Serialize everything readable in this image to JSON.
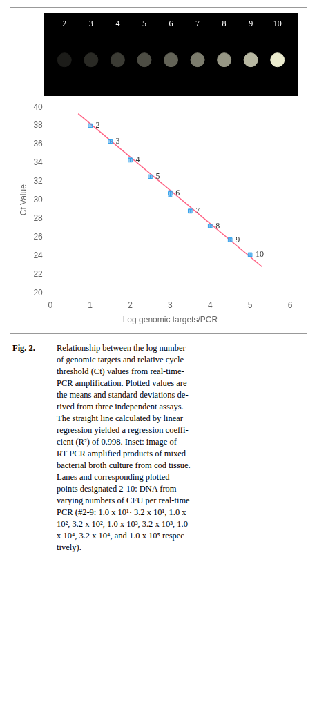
{
  "chart_data": [
    {
      "type": "gel",
      "categories": [
        "2",
        "3",
        "4",
        "5",
        "6",
        "7",
        "8",
        "9",
        "10"
      ],
      "values": [
        0.12,
        0.18,
        0.25,
        0.33,
        0.42,
        0.53,
        0.64,
        0.78,
        1.0
      ]
    },
    {
      "type": "scatter",
      "xlabel": "Log genomic targets/PCR",
      "ylabel": "Ct Value",
      "xlim": [
        0,
        6
      ],
      "ylim": [
        20,
        40
      ],
      "xticks": [
        0,
        1,
        2,
        3,
        4,
        5,
        6
      ],
      "yticks": [
        20,
        22,
        24,
        26,
        28,
        30,
        32,
        34,
        36,
        38,
        40
      ],
      "grid": false,
      "series": [
        {
          "type": "scatter",
          "marker": "square",
          "x": [
            1.0,
            1.5,
            2.0,
            2.5,
            3.0,
            3.5,
            4.0,
            4.5,
            5.0
          ],
          "values": [
            38.0,
            36.3,
            34.3,
            32.5,
            30.7,
            28.8,
            27.2,
            25.7,
            24.1
          ],
          "errors": [
            0.2,
            0.2,
            0.2,
            0.2,
            0.3,
            0.2,
            0.2,
            0.2,
            0.2
          ],
          "point_labels": [
            "2",
            "3",
            "4",
            "5",
            "6",
            "7",
            "8",
            "9",
            "10"
          ]
        },
        {
          "type": "line",
          "line_style": "solid",
          "x": [
            0.7,
            5.3
          ],
          "values": [
            39.3,
            22.8
          ]
        }
      ],
      "caption_label": "Fig. 2.",
      "caption_lines": [
        "Relationship between the log number",
        "of genomic targets and relative cycle",
        "threshold (Ct) values from real-time-",
        "PCR amplification.  Plotted values are",
        "the means and standard deviations de-",
        "rived from three independent assays.",
        "The straight line calculated by linear",
        "regression yielded a regression coeffi-",
        "cient (R²) of 0.998. Inset: image of",
        "RT-PCR amplified products of mixed",
        "bacterial broth culture from cod tissue.",
        "Lanes and corresponding plotted",
        "points designated 2-10:  DNA from",
        "varying numbers of CFU per real-time",
        "PCR (#2-9: 1.0 x 10¹⋅ 3.2 x 10¹, 1.0 x",
        "10², 3.2 x 10², 1.0 x 10³, 3.2 x 10³, 1.0",
        "x 10⁴, 3.2 x 10⁴, and 1.0 x 10⁵ respec-",
        "tively)."
      ]
    }
  ]
}
